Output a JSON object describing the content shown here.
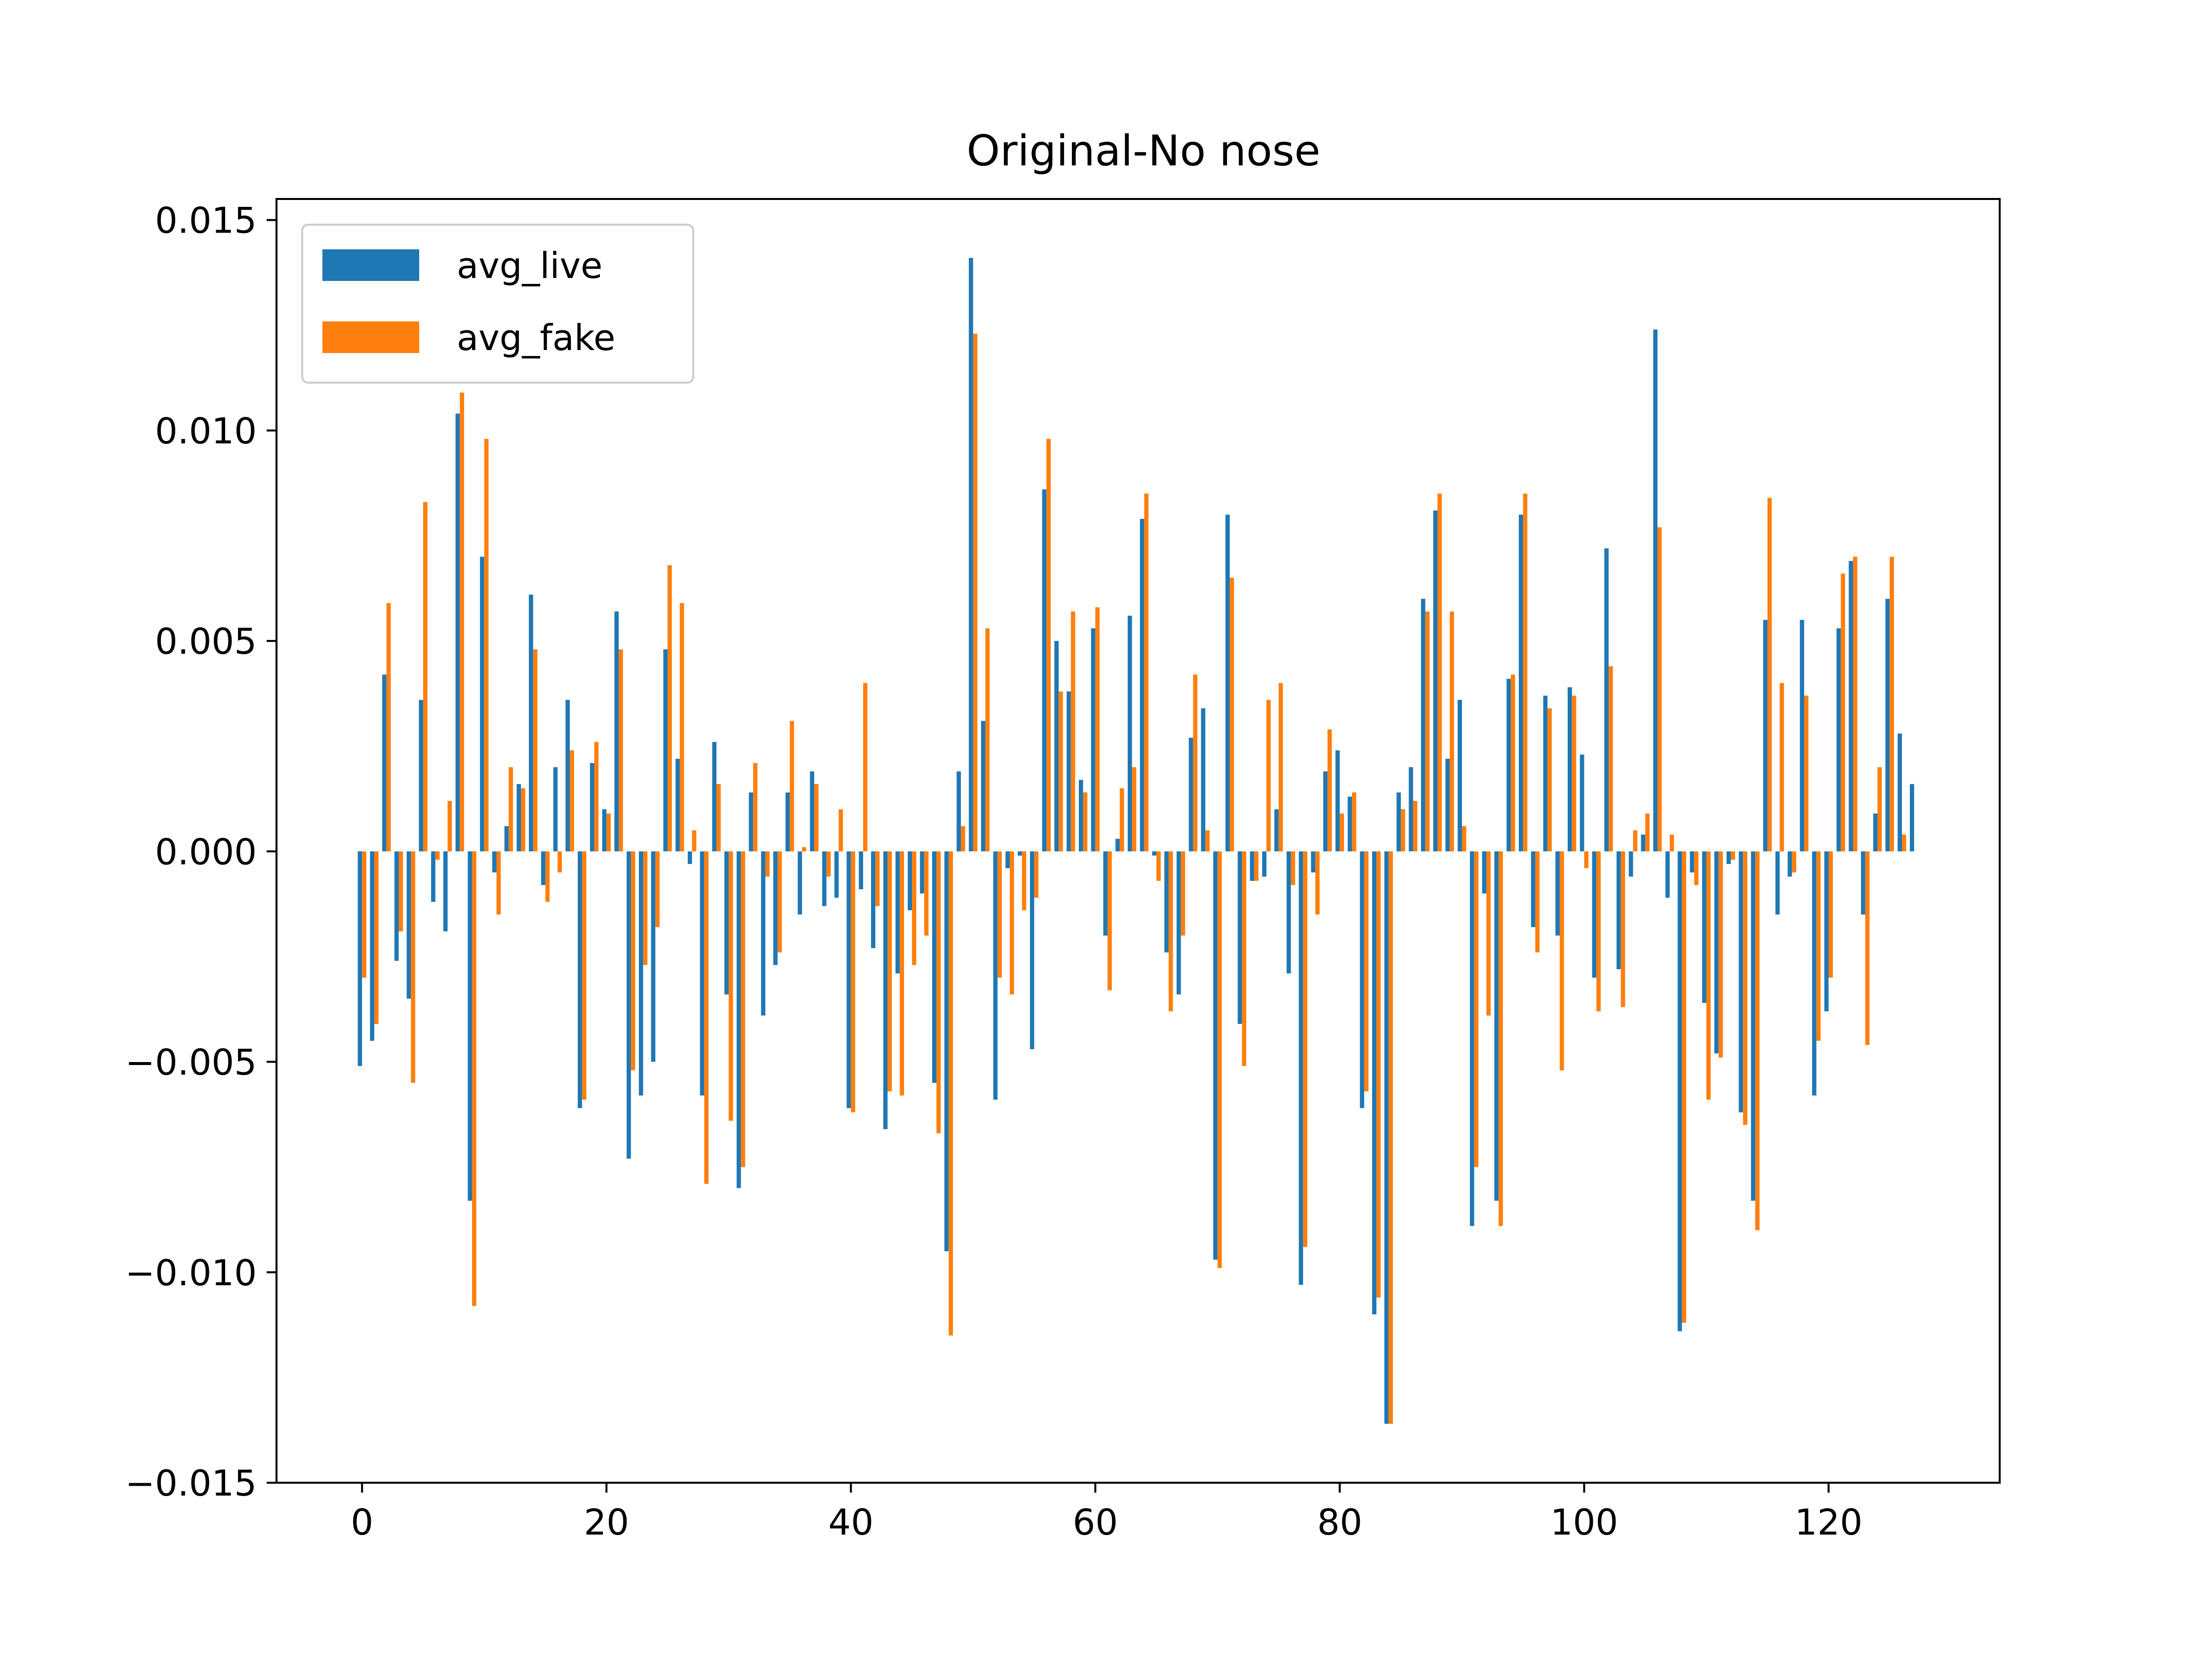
{
  "chart_data": {
    "type": "bar",
    "title": "Original-No nose",
    "xlabel": "",
    "ylabel": "",
    "xlim": [
      -7,
      134
    ],
    "ylim": [
      -0.015,
      0.0155
    ],
    "xticks": [
      0,
      20,
      40,
      60,
      80,
      100,
      120
    ],
    "xtick_labels": [
      "0",
      "20",
      "40",
      "60",
      "80",
      "100",
      "120"
    ],
    "yticks": [
      -0.015,
      -0.01,
      -0.005,
      0.0,
      0.005,
      0.01,
      0.015
    ],
    "ytick_labels": [
      "−0.015",
      "−0.010",
      "−0.005",
      "0.000",
      "0.005",
      "0.010",
      "0.015"
    ],
    "grid": false,
    "legend_position": "upper-left",
    "x": [
      0,
      1,
      2,
      3,
      4,
      5,
      6,
      7,
      8,
      9,
      10,
      11,
      12,
      13,
      14,
      15,
      16,
      17,
      18,
      19,
      20,
      21,
      22,
      23,
      24,
      25,
      26,
      27,
      28,
      29,
      30,
      31,
      32,
      33,
      34,
      35,
      36,
      37,
      38,
      39,
      40,
      41,
      42,
      43,
      44,
      45,
      46,
      47,
      48,
      49,
      50,
      51,
      52,
      53,
      54,
      55,
      56,
      57,
      58,
      59,
      60,
      61,
      62,
      63,
      64,
      65,
      66,
      67,
      68,
      69,
      70,
      71,
      72,
      73,
      74,
      75,
      76,
      77,
      78,
      79,
      80,
      81,
      82,
      83,
      84,
      85,
      86,
      87,
      88,
      89,
      90,
      91,
      92,
      93,
      94,
      95,
      96,
      97,
      98,
      99,
      100,
      101,
      102,
      103,
      104,
      105,
      106,
      107,
      108,
      109,
      110,
      111,
      112,
      113,
      114,
      115,
      116,
      117,
      118,
      119,
      120,
      121,
      122,
      123,
      124,
      125,
      126,
      127
    ],
    "series": [
      {
        "name": "avg_live",
        "color": "#1f77b4",
        "values": [
          -0.0051,
          -0.0045,
          0.0042,
          -0.0026,
          -0.0035,
          0.0036,
          -0.0012,
          -0.0019,
          0.0104,
          -0.0083,
          0.007,
          -0.0005,
          0.0006,
          0.0016,
          0.0061,
          -0.0008,
          0.002,
          0.0036,
          -0.0061,
          0.0021,
          0.001,
          0.0057,
          -0.0073,
          -0.0058,
          -0.005,
          0.0048,
          0.0022,
          -0.0003,
          -0.0058,
          0.0026,
          -0.0034,
          -0.008,
          0.0014,
          -0.0039,
          -0.0027,
          0.0014,
          -0.0015,
          0.0019,
          -0.0013,
          -0.0011,
          -0.0061,
          -0.0009,
          -0.0023,
          -0.0066,
          -0.0029,
          -0.0014,
          -0.001,
          -0.0055,
          -0.0095,
          0.0019,
          0.0141,
          0.0031,
          -0.0059,
          -0.0004,
          -0.0001,
          -0.0047,
          0.0086,
          0.005,
          0.0038,
          0.0017,
          0.0053,
          -0.002,
          0.0003,
          0.0056,
          0.0079,
          -0.0001,
          -0.0024,
          -0.0034,
          0.0027,
          0.0034,
          -0.0097,
          0.008,
          -0.0041,
          -0.0007,
          -0.0006,
          0.001,
          -0.0029,
          -0.0103,
          -0.0005,
          0.0019,
          0.0024,
          0.0013,
          -0.0061,
          -0.011,
          -0.0136,
          0.0014,
          0.002,
          0.006,
          0.0081,
          0.0022,
          0.0036,
          -0.0089,
          -0.001,
          -0.0083,
          0.0041,
          0.008,
          -0.0018,
          0.0037,
          -0.002,
          0.0039,
          0.0023,
          -0.003,
          0.0072,
          -0.0028,
          -0.0006,
          0.0004,
          0.0124,
          -0.0011,
          -0.0114,
          -0.0005,
          -0.0036,
          -0.0048,
          -0.0003,
          -0.0062,
          -0.0083,
          0.0055,
          -0.0015,
          -0.0006,
          0.0055,
          -0.0058,
          -0.0038,
          0.0053,
          0.0069,
          -0.0015,
          0.0009,
          0.006,
          0.0028,
          0.0016
        ]
      },
      {
        "name": "avg_fake",
        "color": "#ff7f0e",
        "values": [
          -0.003,
          -0.0041,
          0.0059,
          -0.0019,
          -0.0055,
          0.0083,
          -0.0002,
          0.0012,
          0.0109,
          -0.0108,
          0.0098,
          -0.0015,
          0.002,
          0.0015,
          0.0048,
          -0.0012,
          -0.0005,
          0.0024,
          -0.0059,
          0.0026,
          0.0009,
          0.0048,
          -0.0052,
          -0.0027,
          -0.0018,
          0.0068,
          0.0059,
          0.0005,
          -0.0079,
          0.0016,
          -0.0064,
          -0.0075,
          0.0021,
          -0.0006,
          -0.0024,
          0.0031,
          0.0001,
          0.0016,
          -0.0006,
          0.001,
          -0.0062,
          0.004,
          -0.0013,
          -0.0057,
          -0.0058,
          -0.0027,
          -0.002,
          -0.0067,
          -0.0115,
          0.0006,
          0.0123,
          0.0053,
          -0.003,
          -0.0034,
          -0.0014,
          -0.0011,
          0.0098,
          0.0038,
          0.0057,
          0.0014,
          0.0058,
          -0.0033,
          0.0015,
          0.002,
          0.0085,
          -0.0007,
          -0.0038,
          -0.002,
          0.0042,
          0.0005,
          -0.0099,
          0.0065,
          -0.0051,
          -0.0007,
          0.0036,
          0.004,
          -0.0008,
          -0.0094,
          -0.0015,
          0.0029,
          0.0009,
          0.0014,
          -0.0057,
          -0.0106,
          -0.0136,
          0.001,
          0.0012,
          0.0057,
          0.0085,
          0.0057,
          0.0006,
          -0.0075,
          -0.0039,
          -0.0089,
          0.0042,
          0.0085,
          -0.0024,
          0.0034,
          -0.0052,
          0.0037,
          -0.0004,
          -0.0038,
          0.0044,
          -0.0037,
          0.0005,
          0.0009,
          0.0077,
          0.0004,
          -0.0112,
          -0.0008,
          -0.0059,
          -0.0049,
          -0.0002,
          -0.0065,
          -0.009,
          0.0084,
          0.004,
          -0.0005,
          0.0037,
          -0.0045,
          -0.003,
          0.0066,
          0.007,
          -0.0046,
          0.002,
          0.007,
          0.0004,
          0.0
        ]
      }
    ]
  }
}
